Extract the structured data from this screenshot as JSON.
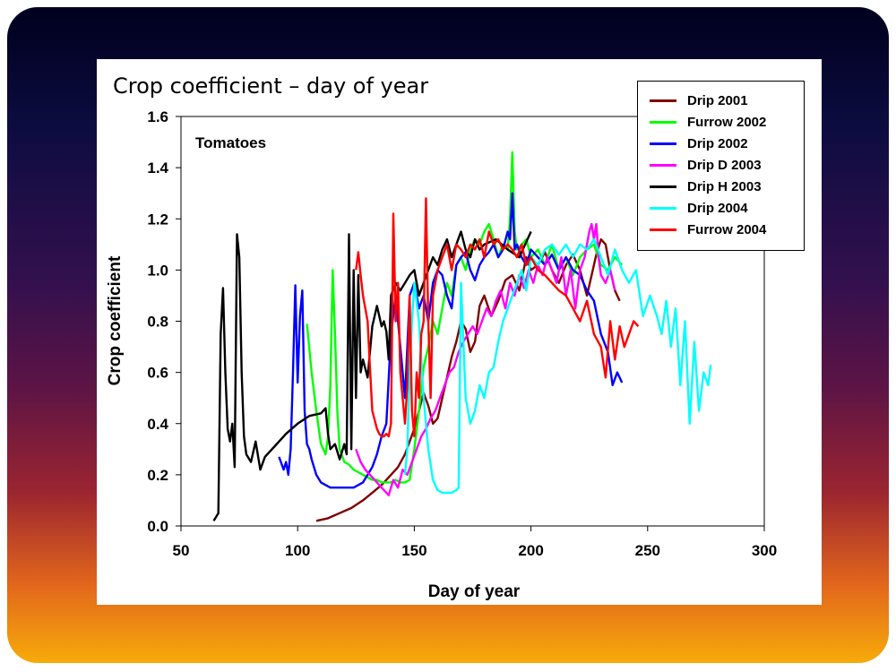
{
  "chart_data": {
    "type": "line",
    "title": "Crop coefficient – day of year",
    "annotation": "Tomatoes",
    "xlabel": "Day of year",
    "ylabel": "Crop coefficient",
    "xlim": [
      50,
      300
    ],
    "ylim": [
      0,
      1.6
    ],
    "xticks": [
      "50",
      "100",
      "150",
      "200",
      "250",
      "300"
    ],
    "yticks": [
      "0.0",
      "0.2",
      "0.4",
      "0.6",
      "0.8",
      "1.0",
      "1.2",
      "1.4",
      "1.6"
    ],
    "legend_position": "top-right",
    "series": [
      {
        "name": "Drip 2001",
        "color": "#800000",
        "x": [
          108,
          113,
          118,
          123,
          128,
          132,
          136,
          140,
          143,
          146,
          148,
          150,
          152,
          154,
          156,
          158,
          160,
          162,
          164,
          166,
          168,
          170,
          172,
          174,
          176,
          178,
          180,
          183,
          186,
          189,
          192,
          195,
          198,
          200,
          203,
          206,
          209,
          212,
          215,
          218,
          221,
          224,
          226,
          228,
          230,
          232,
          234,
          236,
          238
        ],
        "y": [
          0.02,
          0.03,
          0.05,
          0.07,
          0.1,
          0.13,
          0.16,
          0.2,
          0.23,
          0.28,
          0.33,
          0.38,
          0.45,
          0.52,
          0.47,
          0.4,
          0.42,
          0.5,
          0.58,
          0.66,
          0.72,
          0.8,
          0.77,
          0.68,
          0.72,
          0.86,
          0.9,
          0.82,
          0.88,
          0.96,
          0.98,
          0.92,
          1.05,
          1.0,
          1.02,
          1.07,
          1.0,
          0.95,
          1.02,
          1.06,
          1.0,
          0.9,
          0.98,
          1.06,
          1.12,
          1.1,
          1.0,
          0.92,
          0.88
        ]
      },
      {
        "name": "Furrow 2002",
        "color": "#00ff00",
        "x": [
          104,
          106,
          108,
          110,
          112,
          113,
          114,
          115,
          116,
          117,
          118,
          120,
          122,
          124,
          126,
          128,
          130,
          132,
          134,
          136,
          138,
          140,
          142,
          144,
          146,
          148,
          150,
          152,
          154,
          156,
          158,
          160,
          162,
          164,
          166,
          168,
          170,
          172,
          174,
          176,
          178,
          180,
          182,
          184,
          186,
          188,
          190,
          191,
          192,
          193,
          194,
          196,
          198,
          200,
          203,
          206,
          209,
          212,
          215,
          218,
          221,
          224,
          227,
          230,
          233,
          236,
          239
        ],
        "y": [
          0.79,
          0.6,
          0.45,
          0.32,
          0.28,
          0.35,
          0.55,
          1.0,
          0.75,
          0.45,
          0.3,
          0.25,
          0.24,
          0.22,
          0.21,
          0.2,
          0.19,
          0.18,
          0.18,
          0.17,
          0.17,
          0.17,
          0.18,
          0.17,
          0.17,
          0.18,
          0.3,
          0.45,
          0.62,
          0.7,
          0.8,
          0.75,
          0.85,
          0.95,
          0.9,
          1.02,
          1.05,
          1.0,
          1.08,
          1.12,
          1.1,
          1.15,
          1.18,
          1.12,
          1.05,
          1.1,
          1.08,
          1.2,
          1.46,
          1.15,
          1.08,
          1.1,
          1.12,
          1.05,
          1.08,
          1.02,
          1.1,
          1.0,
          1.05,
          0.98,
          1.05,
          1.08,
          1.1,
          1.02,
          1.0,
          1.05,
          1.02
        ]
      },
      {
        "name": "Drip 2002",
        "color": "#0000ff",
        "x": [
          92,
          94,
          95,
          96,
          97,
          98,
          99,
          100,
          101,
          102,
          103,
          104,
          105,
          106,
          108,
          110,
          112,
          114,
          116,
          118,
          120,
          122,
          124,
          126,
          128,
          130,
          132,
          134,
          136,
          138,
          140,
          142,
          144,
          146,
          148,
          150,
          152,
          154,
          156,
          158,
          160,
          162,
          164,
          166,
          168,
          170,
          172,
          174,
          176,
          178,
          180,
          182,
          184,
          186,
          188,
          190,
          191,
          192,
          193,
          194,
          196,
          198,
          200,
          203,
          206,
          209,
          212,
          215,
          218,
          221,
          224,
          227,
          230,
          233,
          235,
          237,
          239
        ],
        "y": [
          0.27,
          0.22,
          0.25,
          0.2,
          0.3,
          0.6,
          0.94,
          0.56,
          0.82,
          0.92,
          0.45,
          0.32,
          0.3,
          0.26,
          0.2,
          0.17,
          0.16,
          0.15,
          0.15,
          0.15,
          0.15,
          0.15,
          0.15,
          0.16,
          0.17,
          0.2,
          0.23,
          0.28,
          0.35,
          0.4,
          0.75,
          0.9,
          0.7,
          0.5,
          0.9,
          0.95,
          0.85,
          0.9,
          0.8,
          0.95,
          1.0,
          0.98,
          0.9,
          0.85,
          1.02,
          1.05,
          1.07,
          1.0,
          0.96,
          1.02,
          1.05,
          1.07,
          1.1,
          1.05,
          1.08,
          1.15,
          1.12,
          1.3,
          1.08,
          1.1,
          1.05,
          1.02,
          1.08,
          1.05,
          1.02,
          1.06,
          1.0,
          1.05,
          1.0,
          0.98,
          0.92,
          0.88,
          0.75,
          0.68,
          0.55,
          0.6,
          0.56
        ]
      },
      {
        "name": "Drip D 2003",
        "color": "#ff00ff",
        "x": [
          125,
          127,
          129,
          131,
          133,
          135,
          137,
          139,
          141,
          143,
          145,
          147,
          149,
          151,
          153,
          155,
          157,
          159,
          161,
          163,
          165,
          167,
          169,
          171,
          173,
          175,
          177,
          179,
          181,
          183,
          185,
          187,
          189,
          191,
          193,
          195,
          197,
          199,
          201,
          203,
          205,
          207,
          209,
          211,
          213,
          215,
          217,
          219,
          221,
          223,
          225,
          226,
          227,
          228,
          229,
          230,
          232,
          234,
          236
        ],
        "y": [
          0.3,
          0.25,
          0.22,
          0.2,
          0.18,
          0.16,
          0.14,
          0.12,
          0.18,
          0.15,
          0.22,
          0.2,
          0.25,
          0.3,
          0.35,
          0.38,
          0.42,
          0.45,
          0.5,
          0.55,
          0.6,
          0.62,
          0.68,
          0.72,
          0.75,
          0.78,
          0.75,
          0.8,
          0.85,
          0.82,
          0.88,
          0.92,
          0.85,
          0.95,
          0.9,
          0.98,
          0.93,
          1.0,
          0.95,
          1.02,
          0.98,
          1.05,
          1.0,
          0.95,
          1.05,
          0.9,
          1.0,
          0.85,
          1.0,
          1.05,
          1.15,
          1.18,
          1.12,
          1.18,
          1.05,
          0.98,
          0.95,
          1.0,
          0.92
        ]
      },
      {
        "name": "Drip H 2003",
        "color": "#000000",
        "x": [
          64,
          66,
          67,
          68,
          69,
          70,
          71,
          72,
          73,
          74,
          75,
          76,
          77,
          78,
          80,
          82,
          84,
          86,
          90,
          95,
          100,
          105,
          110,
          112,
          113,
          114,
          116,
          118,
          120,
          121,
          122,
          123,
          124,
          125,
          126,
          127,
          128,
          130,
          132,
          134,
          136,
          137,
          138,
          139,
          140,
          142,
          144,
          146,
          148,
          150,
          152,
          154,
          156,
          158,
          160,
          162,
          164,
          166,
          168,
          170,
          172,
          174,
          176,
          178,
          180,
          185,
          190,
          195,
          200
        ],
        "y": [
          0.02,
          0.05,
          0.75,
          0.93,
          0.6,
          0.38,
          0.33,
          0.4,
          0.23,
          1.14,
          1.05,
          0.6,
          0.35,
          0.28,
          0.25,
          0.33,
          0.22,
          0.27,
          0.31,
          0.36,
          0.4,
          0.43,
          0.44,
          0.46,
          0.36,
          0.3,
          0.32,
          0.26,
          0.32,
          0.28,
          1.14,
          0.3,
          1.0,
          0.5,
          0.98,
          0.6,
          0.65,
          0.58,
          0.78,
          0.86,
          0.78,
          0.8,
          0.76,
          0.65,
          0.9,
          0.95,
          0.92,
          0.95,
          0.98,
          1.0,
          0.9,
          0.95,
          1.0,
          1.05,
          1.02,
          1.08,
          1.12,
          1.05,
          1.1,
          1.15,
          1.08,
          1.05,
          1.12,
          1.08,
          1.1,
          1.12,
          1.08,
          1.05,
          1.15
        ]
      },
      {
        "name": "Drip 2004",
        "color": "#00ffff",
        "x": [
          146,
          147,
          148,
          149,
          150,
          152,
          154,
          156,
          158,
          160,
          162,
          164,
          166,
          168,
          169,
          170,
          172,
          174,
          176,
          178,
          180,
          182,
          184,
          186,
          188,
          190,
          192,
          194,
          196,
          198,
          200,
          203,
          206,
          209,
          212,
          215,
          218,
          221,
          224,
          227,
          230,
          233,
          236,
          239,
          242,
          245,
          248,
          251,
          254,
          256,
          258,
          260,
          262,
          264,
          266,
          268,
          270,
          272,
          274,
          276,
          277
        ],
        "y": [
          0.2,
          0.3,
          0.6,
          0.8,
          0.95,
          0.8,
          0.5,
          0.3,
          0.18,
          0.14,
          0.13,
          0.13,
          0.13,
          0.14,
          0.15,
          0.95,
          0.5,
          0.4,
          0.45,
          0.55,
          0.5,
          0.6,
          0.62,
          0.72,
          0.8,
          0.85,
          0.9,
          0.95,
          1.0,
          0.92,
          1.05,
          1.02,
          1.08,
          1.1,
          1.06,
          1.1,
          1.05,
          1.1,
          1.08,
          1.12,
          1.05,
          0.98,
          1.08,
          1.0,
          0.95,
          1.0,
          0.82,
          0.9,
          0.82,
          0.75,
          0.88,
          0.7,
          0.85,
          0.55,
          0.8,
          0.4,
          0.72,
          0.45,
          0.6,
          0.55,
          0.63
        ]
      },
      {
        "name": "Furrow 2004",
        "color": "#ff0000",
        "x": [
          125,
          126,
          127,
          128,
          129,
          130,
          131,
          132,
          134,
          135,
          136,
          137,
          138,
          139,
          140,
          141,
          142,
          143,
          144,
          145,
          146,
          147,
          148,
          149,
          150,
          151,
          152,
          153,
          154,
          155,
          156,
          157,
          158,
          160,
          162,
          164,
          166,
          168,
          170,
          172,
          174,
          176,
          178,
          180,
          182,
          184,
          186,
          188,
          190,
          192,
          194,
          196,
          198,
          200,
          203,
          206,
          209,
          212,
          215,
          218,
          221,
          224,
          227,
          230,
          232,
          234,
          236,
          238,
          240,
          242,
          244,
          246
        ],
        "y": [
          1.0,
          1.07,
          0.98,
          0.9,
          0.85,
          0.8,
          0.62,
          0.45,
          0.38,
          0.36,
          0.35,
          0.35,
          0.36,
          0.35,
          0.4,
          1.22,
          0.8,
          0.95,
          0.6,
          0.5,
          0.4,
          0.55,
          0.9,
          0.45,
          0.35,
          0.6,
          0.5,
          0.75,
          0.8,
          1.28,
          0.8,
          0.5,
          0.9,
          1.0,
          1.05,
          1.1,
          1.0,
          1.1,
          1.08,
          1.05,
          1.1,
          1.08,
          1.12,
          1.05,
          1.15,
          1.1,
          1.12,
          1.08,
          1.1,
          1.08,
          1.05,
          1.1,
          1.02,
          1.05,
          1.0,
          0.98,
          0.95,
          0.92,
          0.9,
          0.85,
          0.8,
          0.88,
          0.75,
          0.7,
          0.58,
          0.8,
          0.65,
          0.78,
          0.7,
          0.75,
          0.8,
          0.78
        ]
      }
    ]
  }
}
